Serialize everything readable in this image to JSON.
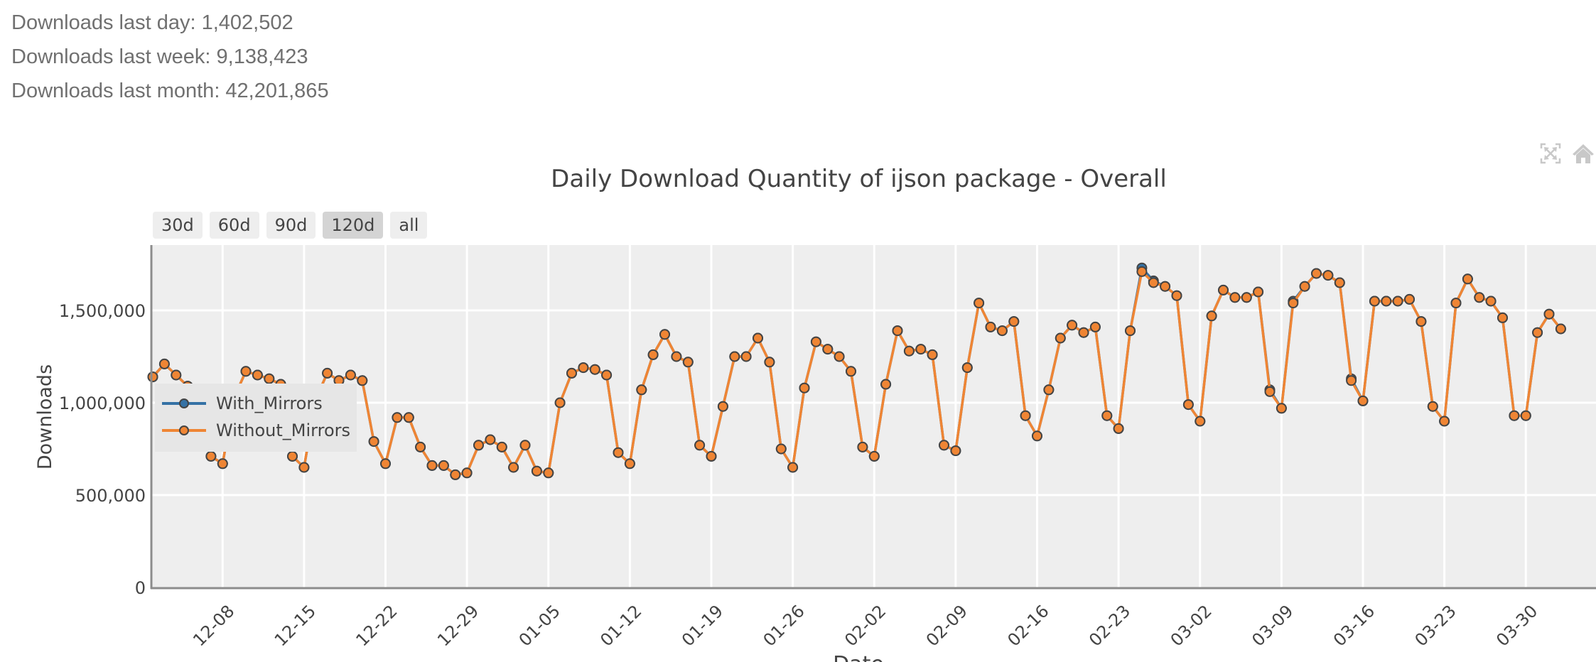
{
  "stats": {
    "last_day": "Downloads last day: 1,402,502",
    "last_week": "Downloads last week: 9,138,423",
    "last_month": "Downloads last month: 42,201,865"
  },
  "modebar": {
    "icons": [
      "autoscale-icon",
      "reset-axes-home-icon"
    ]
  },
  "range_selector": {
    "buttons": [
      {
        "label": "30d",
        "active": false
      },
      {
        "label": "60d",
        "active": false
      },
      {
        "label": "90d",
        "active": false
      },
      {
        "label": "120d",
        "active": true
      },
      {
        "label": "all",
        "active": false
      }
    ]
  },
  "legend": {
    "items": [
      {
        "label": "With_Mirrors",
        "color": "#3572a5"
      },
      {
        "label": "Without_Mirrors",
        "color": "#ef8534"
      }
    ]
  },
  "colors": {
    "plot_bg": "#eeeeee",
    "grid": "#ffffff",
    "axis_line": "#8c8c8c",
    "with_mirrors": "#3572a5",
    "without_mirrors": "#ef8534",
    "marker_outline": "#444444"
  },
  "chart_data": {
    "type": "line",
    "title": "Daily Download Quantity of ijson package - Overall",
    "xlabel": "Date",
    "ylabel": "Downloads",
    "ylim": [
      0,
      1850000
    ],
    "yticks": [
      0,
      500000,
      1000000,
      1500000
    ],
    "ytick_labels": [
      "0",
      "500,000",
      "1,000,000",
      "1,500,000"
    ],
    "xtick_labels": [
      "12-08",
      "12-15",
      "12-22",
      "12-29",
      "01-05",
      "01-12",
      "01-19",
      "01-26",
      "02-02",
      "02-09",
      "02-16",
      "02-23",
      "03-02",
      "03-09",
      "03-16",
      "03-23",
      "03-30"
    ],
    "grid": true,
    "legend_position": "inside-left",
    "x_start": "12-02",
    "x_end": "04-02",
    "series": [
      {
        "name": "With_Mirrors",
        "values": [
          1140000,
          1210000,
          1150000,
          1090000,
          1000000,
          710000,
          670000,
          1030000,
          1170000,
          1150000,
          1130000,
          1100000,
          710000,
          650000,
          1020000,
          1160000,
          1120000,
          1150000,
          1120000,
          790000,
          670000,
          920000,
          920000,
          760000,
          660000,
          660000,
          610000,
          620000,
          770000,
          800000,
          760000,
          650000,
          770000,
          630000,
          620000,
          1000000,
          1160000,
          1190000,
          1180000,
          1150000,
          730000,
          670000,
          1070000,
          1260000,
          1370000,
          1250000,
          1220000,
          770000,
          710000,
          980000,
          1250000,
          1250000,
          1350000,
          1220000,
          750000,
          650000,
          1080000,
          1330000,
          1290000,
          1250000,
          1170000,
          760000,
          710000,
          1100000,
          1390000,
          1280000,
          1290000,
          1260000,
          770000,
          740000,
          1190000,
          1540000,
          1410000,
          1390000,
          1440000,
          930000,
          820000,
          1070000,
          1350000,
          1420000,
          1380000,
          1410000,
          930000,
          860000,
          1390000,
          1730000,
          1660000,
          1630000,
          1580000,
          990000,
          900000,
          1470000,
          1610000,
          1570000,
          1570000,
          1600000,
          1070000,
          970000,
          1550000,
          1630000,
          1700000,
          1690000,
          1650000,
          1130000,
          1010000,
          1550000,
          1550000,
          1550000,
          1560000,
          1440000,
          980000,
          900000,
          1540000,
          1670000,
          1570000,
          1550000,
          1460000,
          930000,
          930000,
          1380000,
          1480000,
          1400000
        ]
      },
      {
        "name": "Without_Mirrors",
        "values": [
          1140000,
          1210000,
          1150000,
          1090000,
          1000000,
          710000,
          670000,
          1030000,
          1170000,
          1150000,
          1130000,
          1100000,
          710000,
          650000,
          1020000,
          1160000,
          1120000,
          1150000,
          1120000,
          790000,
          670000,
          920000,
          920000,
          760000,
          660000,
          660000,
          610000,
          620000,
          770000,
          800000,
          760000,
          650000,
          770000,
          630000,
          620000,
          1000000,
          1160000,
          1190000,
          1180000,
          1150000,
          730000,
          670000,
          1070000,
          1260000,
          1370000,
          1250000,
          1220000,
          770000,
          710000,
          980000,
          1250000,
          1250000,
          1350000,
          1220000,
          750000,
          650000,
          1080000,
          1330000,
          1290000,
          1250000,
          1170000,
          760000,
          710000,
          1100000,
          1390000,
          1280000,
          1290000,
          1260000,
          770000,
          740000,
          1190000,
          1540000,
          1410000,
          1390000,
          1440000,
          930000,
          820000,
          1070000,
          1350000,
          1420000,
          1380000,
          1410000,
          930000,
          860000,
          1390000,
          1710000,
          1650000,
          1630000,
          1580000,
          990000,
          900000,
          1470000,
          1610000,
          1570000,
          1570000,
          1600000,
          1060000,
          970000,
          1540000,
          1630000,
          1700000,
          1690000,
          1650000,
          1120000,
          1010000,
          1550000,
          1550000,
          1550000,
          1560000,
          1440000,
          980000,
          900000,
          1540000,
          1670000,
          1570000,
          1550000,
          1460000,
          930000,
          930000,
          1380000,
          1480000,
          1400000
        ]
      }
    ]
  }
}
